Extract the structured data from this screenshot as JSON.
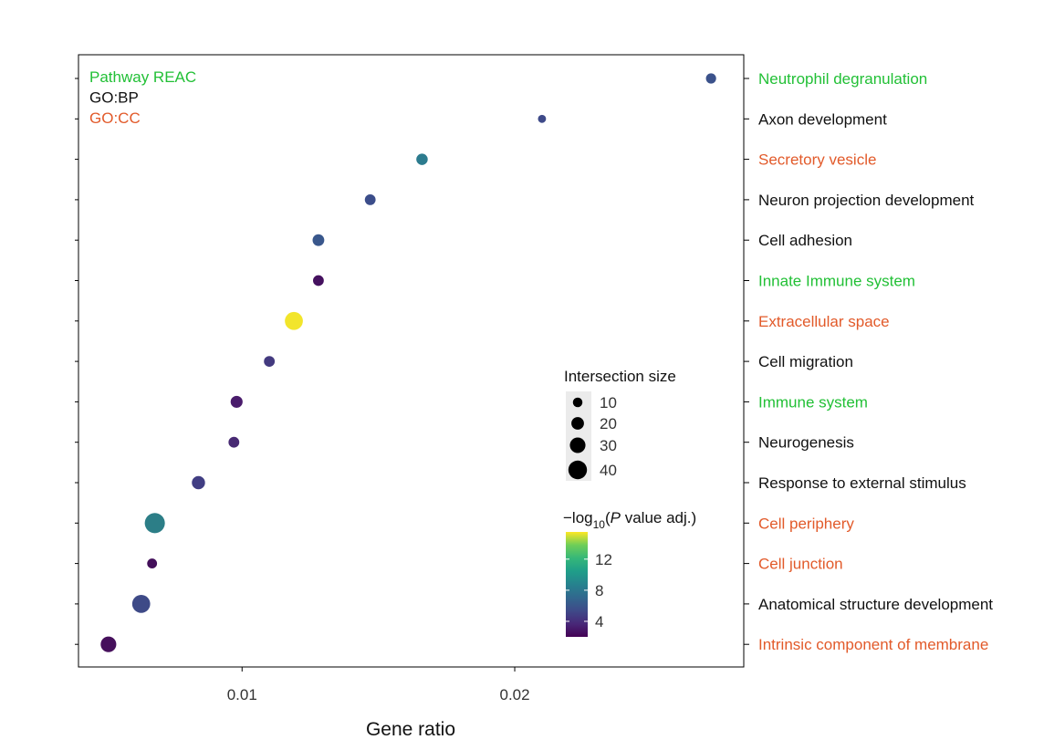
{
  "chart_data": {
    "type": "scatter",
    "xlabel": "Gene ratio",
    "ylabel": "",
    "xlim": [
      0.004,
      0.0284
    ],
    "x_ticks": [
      {
        "value": 0.01,
        "label": "0.01"
      },
      {
        "value": 0.02,
        "label": "0.02"
      }
    ],
    "grid": false,
    "source_legend": [
      {
        "label": "Pathway REAC",
        "color": "#22c036"
      },
      {
        "label": "GO:BP",
        "color": "#111111"
      },
      {
        "label": "GO:CC",
        "color": "#e25a2a"
      }
    ],
    "size_legend": {
      "title": "Intersection size",
      "items": [
        {
          "value": 10,
          "label": "10"
        },
        {
          "value": 20,
          "label": "20"
        },
        {
          "value": 30,
          "label": "30"
        },
        {
          "value": 40,
          "label": "40"
        }
      ]
    },
    "color_legend": {
      "title_prefix": "−log",
      "title_sub": "10",
      "title_paren_open": "(",
      "title_italic": "P",
      "title_suffix": " value adj.)",
      "range": [
        2,
        15.5
      ],
      "ticks": [
        {
          "value": 4,
          "label": "4"
        },
        {
          "value": 8,
          "label": "8"
        },
        {
          "value": 12,
          "label": "12"
        }
      ]
    },
    "terms": [
      {
        "label": "Neutrophil degranulation",
        "source": "REAC",
        "color": "#22c036",
        "gene_ratio": 0.0272,
        "intersection_size": 12,
        "neg_log10_padj": 4.0,
        "fill": "#3b528b"
      },
      {
        "label": "Axon development",
        "source": "GO:BP",
        "color": "#111111",
        "gene_ratio": 0.021,
        "intersection_size": 5,
        "neg_log10_padj": 4.0,
        "fill": "#3e4a89"
      },
      {
        "label": "Secretory vesicle",
        "source": "GO:CC",
        "color": "#e25a2a",
        "gene_ratio": 0.0166,
        "intersection_size": 16,
        "neg_log10_padj": 8.5,
        "fill": "#2c7b8e"
      },
      {
        "label": "Neuron projection development",
        "source": "GO:BP",
        "color": "#111111",
        "gene_ratio": 0.0147,
        "intersection_size": 14,
        "neg_log10_padj": 4.0,
        "fill": "#3b4d8a"
      },
      {
        "label": "Cell adhesion",
        "source": "GO:BP",
        "color": "#111111",
        "gene_ratio": 0.0128,
        "intersection_size": 17,
        "neg_log10_padj": 4.5,
        "fill": "#39578c"
      },
      {
        "label": "Innate Immune system",
        "source": "REAC",
        "color": "#22c036",
        "gene_ratio": 0.0128,
        "intersection_size": 14,
        "neg_log10_padj": 2.5,
        "fill": "#45115f"
      },
      {
        "label": "Extracellular space",
        "source": "GO:CC",
        "color": "#e25a2a",
        "gene_ratio": 0.0119,
        "intersection_size": 38,
        "neg_log10_padj": 15.0,
        "fill": "#f2e52b"
      },
      {
        "label": "Cell migration",
        "source": "GO:BP",
        "color": "#111111",
        "gene_ratio": 0.011,
        "intersection_size": 14,
        "neg_log10_padj": 3.5,
        "fill": "#433a7f"
      },
      {
        "label": "Immune system",
        "source": "REAC",
        "color": "#22c036",
        "gene_ratio": 0.0098,
        "intersection_size": 18,
        "neg_log10_padj": 2.5,
        "fill": "#4a1c6c"
      },
      {
        "label": "Neurogenesis",
        "source": "GO:BP",
        "color": "#111111",
        "gene_ratio": 0.0097,
        "intersection_size": 14,
        "neg_log10_padj": 3.0,
        "fill": "#482a73"
      },
      {
        "label": "Response to external stimulus",
        "source": "GO:BP",
        "color": "#111111",
        "gene_ratio": 0.0084,
        "intersection_size": 22,
        "neg_log10_padj": 3.5,
        "fill": "#413e83"
      },
      {
        "label": "Cell periphery",
        "source": "GO:CC",
        "color": "#e25a2a",
        "gene_ratio": 0.0068,
        "intersection_size": 45,
        "neg_log10_padj": 8.5,
        "fill": "#2c7e87"
      },
      {
        "label": "Cell junction",
        "source": "GO:CC",
        "color": "#e25a2a",
        "gene_ratio": 0.0067,
        "intersection_size": 11,
        "neg_log10_padj": 2.0,
        "fill": "#430f5a"
      },
      {
        "label": "Anatomical structure development",
        "source": "GO:BP",
        "color": "#111111",
        "gene_ratio": 0.0063,
        "intersection_size": 38,
        "neg_log10_padj": 4.0,
        "fill": "#3e4a87"
      },
      {
        "label": "Intrinsic component of membrane",
        "source": "GO:CC",
        "color": "#e25a2a",
        "gene_ratio": 0.0051,
        "intersection_size": 30,
        "neg_log10_padj": 2.0,
        "fill": "#46105c"
      }
    ]
  }
}
